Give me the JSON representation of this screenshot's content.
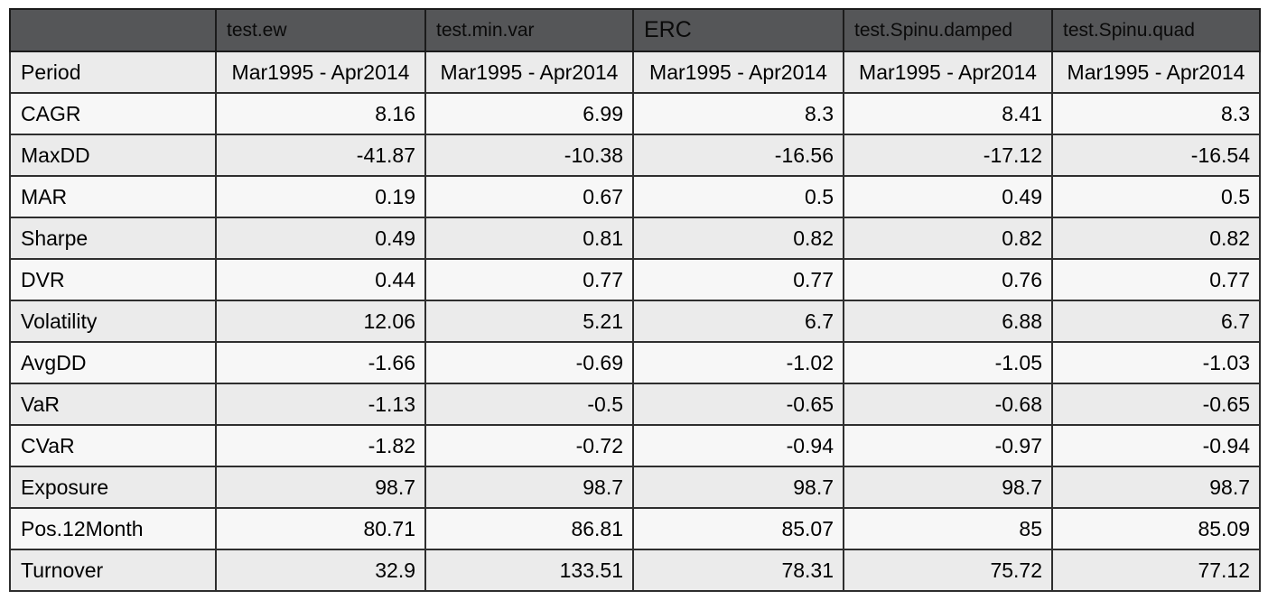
{
  "chart_data": {
    "type": "table",
    "columns": [
      "",
      "test.ew",
      "test.min.var",
      "ERC",
      "test.Spinu.damped",
      "test.Spinu.quad"
    ],
    "rows": [
      {
        "label": "Period",
        "values": [
          "Mar1995 - Apr2014",
          "Mar1995 - Apr2014",
          "Mar1995 - Apr2014",
          "Mar1995 - Apr2014",
          "Mar1995 - Apr2014"
        ]
      },
      {
        "label": "CAGR",
        "values": [
          "8.16",
          "6.99",
          "8.3",
          "8.41",
          "8.3"
        ]
      },
      {
        "label": "MaxDD",
        "values": [
          "-41.87",
          "-10.38",
          "-16.56",
          "-17.12",
          "-16.54"
        ]
      },
      {
        "label": "MAR",
        "values": [
          "0.19",
          "0.67",
          "0.5",
          "0.49",
          "0.5"
        ]
      },
      {
        "label": "Sharpe",
        "values": [
          "0.49",
          "0.81",
          "0.82",
          "0.82",
          "0.82"
        ]
      },
      {
        "label": "DVR",
        "values": [
          "0.44",
          "0.77",
          "0.77",
          "0.76",
          "0.77"
        ]
      },
      {
        "label": "Volatility",
        "values": [
          "12.06",
          "5.21",
          "6.7",
          "6.88",
          "6.7"
        ]
      },
      {
        "label": "AvgDD",
        "values": [
          "-1.66",
          "-0.69",
          "-1.02",
          "-1.05",
          "-1.03"
        ]
      },
      {
        "label": "VaR",
        "values": [
          "-1.13",
          "-0.5",
          "-0.65",
          "-0.68",
          "-0.65"
        ]
      },
      {
        "label": "CVaR",
        "values": [
          "-1.82",
          "-0.72",
          "-0.94",
          "-0.97",
          "-0.94"
        ]
      },
      {
        "label": "Exposure",
        "values": [
          "98.7",
          "98.7",
          "98.7",
          "98.7",
          "98.7"
        ]
      },
      {
        "label": "Pos.12Month",
        "values": [
          "80.71",
          "86.81",
          "85.07",
          "85",
          "85.09"
        ]
      },
      {
        "label": "Turnover",
        "values": [
          "32.9",
          "133.51",
          "78.31",
          "75.72",
          "77.12"
        ]
      }
    ],
    "layout": {
      "legend": "none",
      "grid": "full-cell-borders",
      "header_position": "top",
      "row_striping": "alternating starting gray at Period row"
    },
    "colors": {
      "header_bg": "#555658",
      "header_text": "#0a0a0a",
      "row_gray": "#ebebeb",
      "row_light": "#f7f7f7",
      "border": "#2e2e2e",
      "body_text": "#000000",
      "page_bg": "#ffffff"
    }
  }
}
